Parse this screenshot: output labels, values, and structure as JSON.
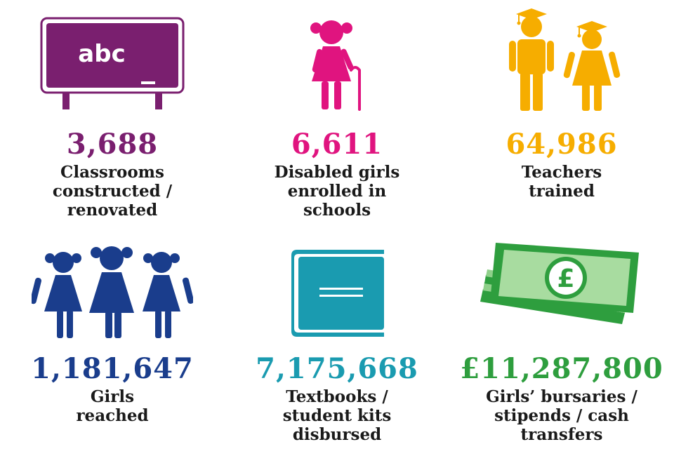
{
  "colors": {
    "purple": "#7a1f6f",
    "magenta": "#e0147f",
    "amber": "#f6ad00",
    "navy": "#1a3d8c",
    "teal": "#1a9bb0",
    "green": "#2e9e3e"
  },
  "stats": [
    {
      "value": "3,688",
      "label_lines": [
        "Classrooms",
        "constructed /",
        "renovated"
      ],
      "icon": "chalkboard-icon",
      "board_text": "abc"
    },
    {
      "value": "6,611",
      "label_lines": [
        "Disabled girls",
        "enrolled in",
        "schools"
      ],
      "icon": "girl-with-cane-icon"
    },
    {
      "value": "64,986",
      "label_lines": [
        "Teachers",
        "trained"
      ],
      "icon": "graduates-icon"
    },
    {
      "value": "1,181,647",
      "label_lines": [
        "Girls",
        "reached"
      ],
      "icon": "three-girls-icon"
    },
    {
      "value": "7,175,668",
      "label_lines": [
        "Textbooks /",
        "student kits",
        "disbursed"
      ],
      "icon": "book-icon"
    },
    {
      "value": "£11,287,800",
      "label_lines": [
        "Girls’ bursaries /",
        "stipends / cash",
        "transfers"
      ],
      "icon": "banknotes-icon",
      "note_symbol": "£"
    }
  ]
}
